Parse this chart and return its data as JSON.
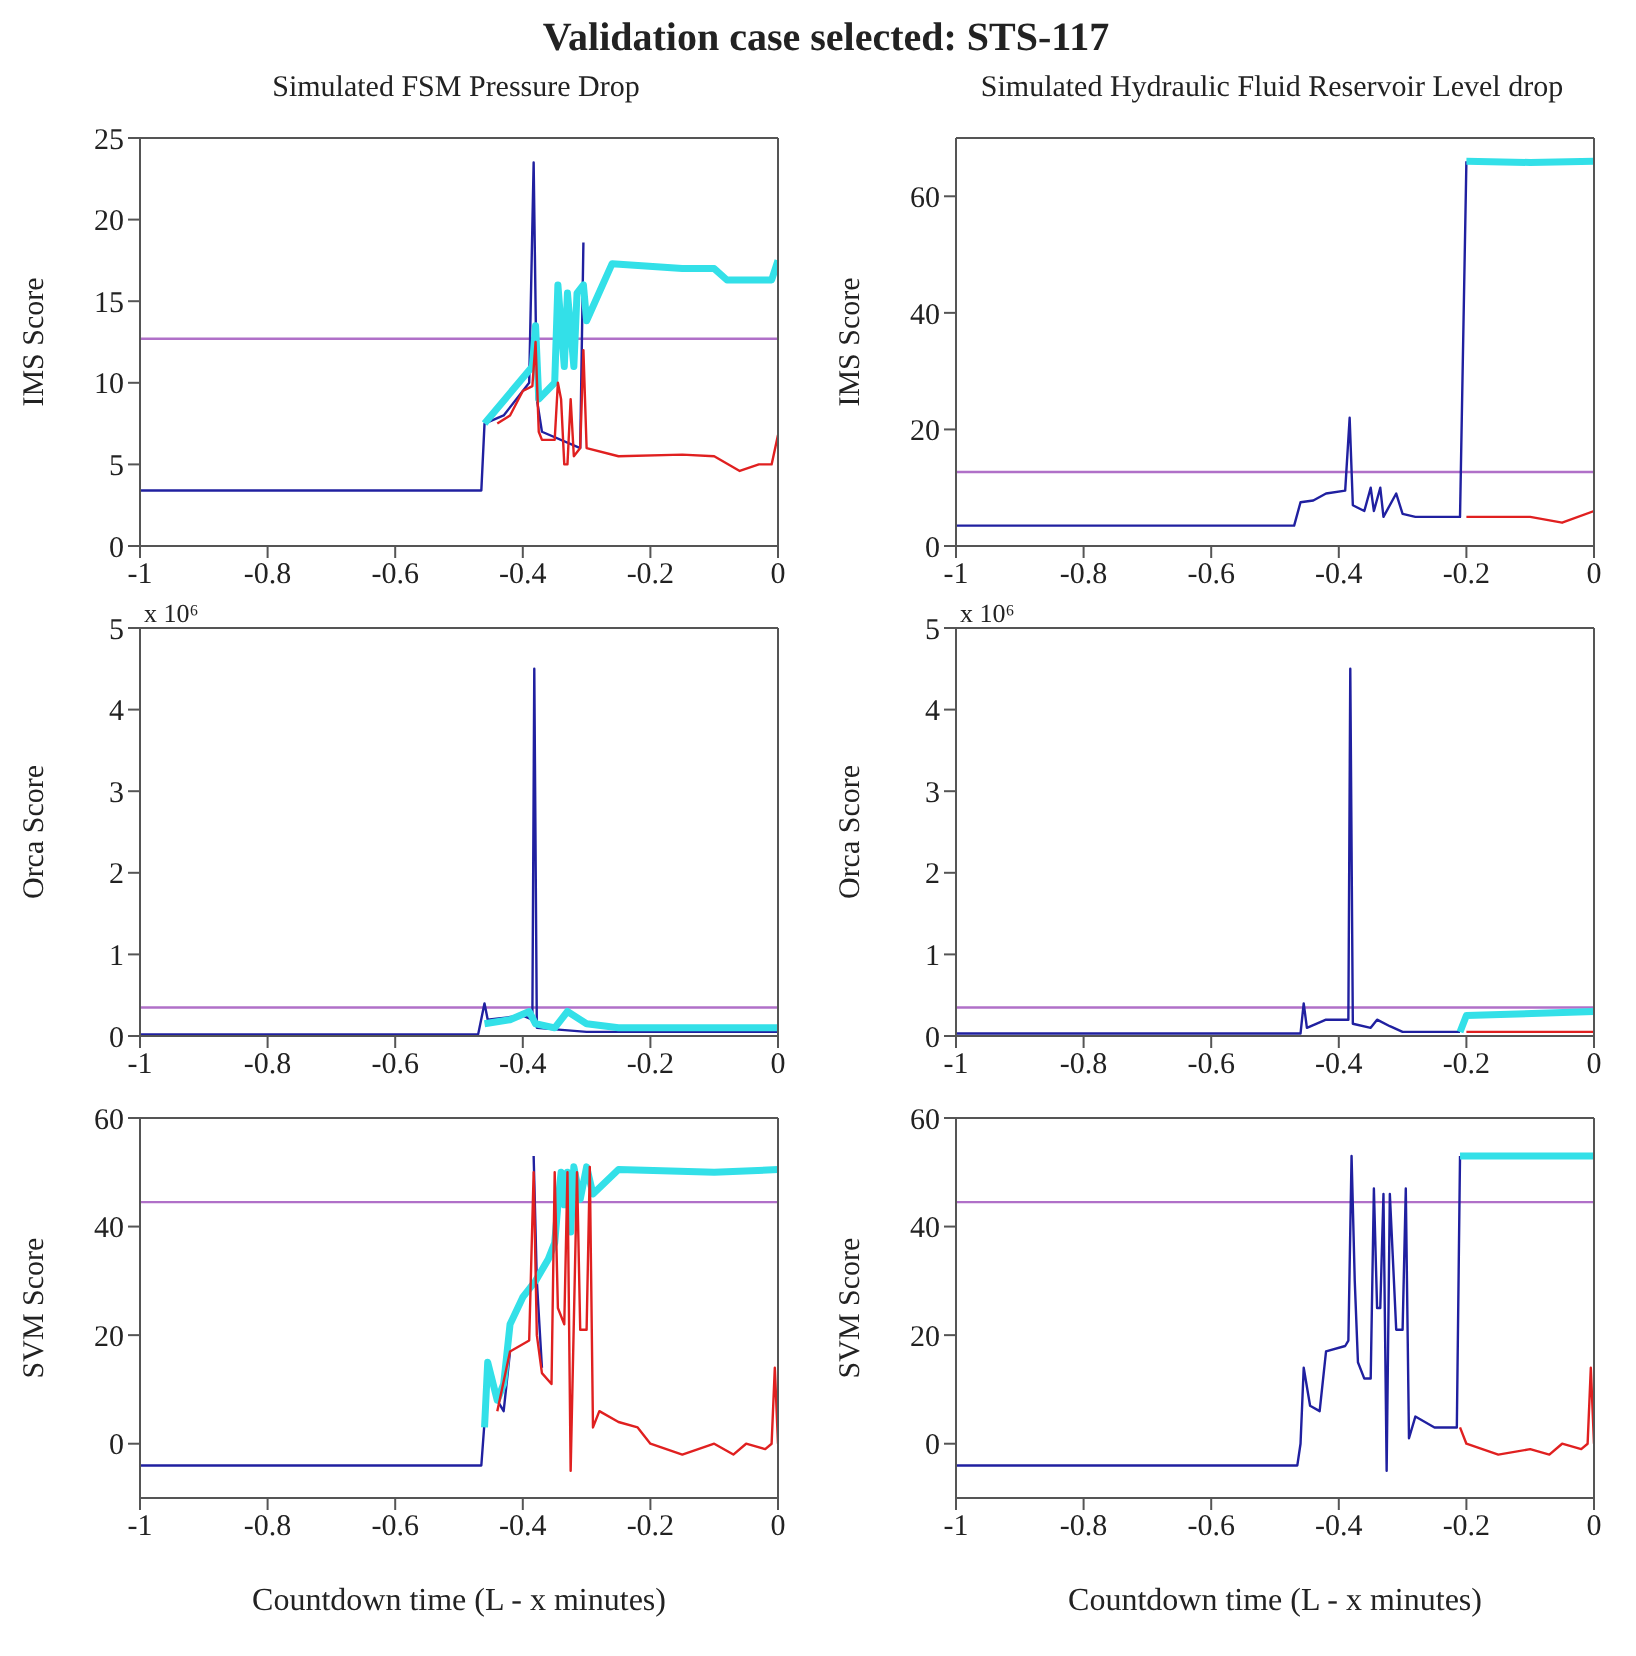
{
  "chart_data": [
    {
      "type": "line",
      "title": "Validation case selected: STS-117",
      "subtitle": "Simulated FSM Pressure Drop",
      "ylabel": "IMS Score",
      "xlim": [
        -1,
        0
      ],
      "xticks": [
        -1,
        -0.8,
        -0.6,
        -0.4,
        -0.2,
        0
      ],
      "ylim": [
        0,
        25
      ],
      "yticks": [
        0,
        5,
        10,
        15,
        20,
        25
      ],
      "ref_lines": [
        {
          "axis": "y",
          "value": 12.7,
          "color": "#b070c8"
        }
      ],
      "series": [
        {
          "color": "#2020a0",
          "x": [
            -1,
            -0.6,
            -0.465,
            -0.46,
            -0.43,
            -0.39,
            -0.383,
            -0.378,
            -0.37,
            -0.31,
            -0.305
          ],
          "values": [
            3.4,
            3.4,
            3.4,
            7.5,
            8,
            10,
            23.5,
            9,
            7,
            6,
            18.6
          ]
        },
        {
          "color": "#33e0e8",
          "x": [
            -0.46,
            -0.385,
            -0.38,
            -0.375,
            -0.35,
            -0.345,
            -0.335,
            -0.33,
            -0.32,
            -0.315,
            -0.305,
            -0.3,
            -0.26,
            -0.15,
            -0.1,
            -0.08,
            -0.01,
            0
          ],
          "values": [
            7.5,
            11,
            13.5,
            9,
            10,
            16,
            11,
            15.5,
            11,
            15.5,
            16,
            13.8,
            17.3,
            17,
            17,
            16.3,
            16.3,
            17.5
          ]
        },
        {
          "color": "#e02020",
          "x": [
            -0.44,
            -0.42,
            -0.4,
            -0.385,
            -0.38,
            -0.375,
            -0.37,
            -0.35,
            -0.345,
            -0.34,
            -0.335,
            -0.33,
            -0.325,
            -0.32,
            -0.31,
            -0.305,
            -0.3,
            -0.25,
            -0.15,
            -0.1,
            -0.06,
            -0.03,
            -0.01,
            0
          ],
          "values": [
            7.5,
            8,
            9.5,
            9.8,
            12.5,
            7,
            6.5,
            6.5,
            10,
            9,
            5,
            5,
            9,
            5.5,
            6,
            12,
            6,
            5.5,
            5.6,
            5.5,
            4.6,
            5,
            5,
            6.8
          ]
        }
      ]
    },
    {
      "type": "line",
      "subtitle": "Simulated Hydraulic Fluid Reservoir Level drop",
      "ylabel": "IMS Score",
      "xlim": [
        -1,
        0
      ],
      "xticks": [
        -1,
        -0.8,
        -0.6,
        -0.4,
        -0.2,
        0
      ],
      "ylim": [
        0,
        70
      ],
      "yticks": [
        0,
        20,
        40,
        60
      ],
      "ref_lines": [
        {
          "axis": "y",
          "value": 12.7,
          "color": "#b070c8"
        }
      ],
      "series": [
        {
          "color": "#2020a0",
          "x": [
            -1,
            -0.47,
            -0.46,
            -0.44,
            -0.42,
            -0.39,
            -0.383,
            -0.378,
            -0.36,
            -0.35,
            -0.345,
            -0.335,
            -0.33,
            -0.31,
            -0.3,
            -0.28,
            -0.21,
            -0.2
          ],
          "values": [
            3.5,
            3.5,
            7.5,
            7.8,
            9,
            9.5,
            22,
            7,
            6,
            10,
            6,
            10,
            5,
            9,
            5.5,
            5,
            5,
            66
          ]
        },
        {
          "color": "#33e0e8",
          "x": [
            -0.2,
            -0.1,
            0
          ],
          "values": [
            66,
            65.8,
            66
          ]
        },
        {
          "color": "#e02020",
          "x": [
            -0.2,
            -0.1,
            -0.05,
            0
          ],
          "values": [
            5,
            5,
            4,
            6
          ]
        }
      ]
    },
    {
      "type": "line",
      "ylabel": "Orca Score",
      "annotations": [
        "x 10⁶"
      ],
      "xlim": [
        -1,
        0
      ],
      "xticks": [
        -1,
        -0.8,
        -0.6,
        -0.4,
        -0.2,
        0
      ],
      "ylim": [
        0,
        5
      ],
      "yticks": [
        0,
        1,
        2,
        3,
        4,
        5
      ],
      "ref_lines": [
        {
          "axis": "y",
          "value": 0.35,
          "color": "#b070c8"
        }
      ],
      "series": [
        {
          "color": "#2020a0",
          "x": [
            -1,
            -0.47,
            -0.46,
            -0.455,
            -0.4,
            -0.385,
            -0.382,
            -0.378,
            -0.3,
            0
          ],
          "values": [
            0.02,
            0.02,
            0.4,
            0.2,
            0.25,
            0.2,
            4.5,
            0.1,
            0.05,
            0.05
          ]
        },
        {
          "color": "#33e0e8",
          "x": [
            -0.46,
            -0.42,
            -0.39,
            -0.38,
            -0.35,
            -0.33,
            -0.3,
            -0.25,
            0
          ],
          "values": [
            0.15,
            0.2,
            0.3,
            0.15,
            0.1,
            0.3,
            0.15,
            0.1,
            0.1
          ]
        }
      ]
    },
    {
      "type": "line",
      "ylabel": "Orca Score",
      "annotations": [
        "x 10⁶"
      ],
      "xlim": [
        -1,
        0
      ],
      "xticks": [
        -1,
        -0.8,
        -0.6,
        -0.4,
        -0.2,
        0
      ],
      "ylim": [
        0,
        5
      ],
      "yticks": [
        0,
        1,
        2,
        3,
        4,
        5
      ],
      "ref_lines": [
        {
          "axis": "y",
          "value": 0.35,
          "color": "#b070c8"
        }
      ],
      "series": [
        {
          "color": "#2020a0",
          "x": [
            -1,
            -0.46,
            -0.455,
            -0.45,
            -0.42,
            -0.385,
            -0.382,
            -0.378,
            -0.35,
            -0.34,
            -0.32,
            -0.3,
            -0.21
          ],
          "values": [
            0.03,
            0.03,
            0.4,
            0.1,
            0.2,
            0.2,
            4.5,
            0.15,
            0.1,
            0.2,
            0.12,
            0.05,
            0.05
          ]
        },
        {
          "color": "#33e0e8",
          "x": [
            -0.21,
            -0.2,
            0
          ],
          "values": [
            0.05,
            0.25,
            0.3
          ]
        },
        {
          "color": "#e02020",
          "x": [
            -0.2,
            0
          ],
          "values": [
            0.05,
            0.05
          ]
        }
      ]
    },
    {
      "type": "line",
      "ylabel": "SVM Score",
      "xlabel": "Countdown time (L - x minutes)",
      "xlim": [
        -1,
        0
      ],
      "xticks": [
        -1,
        -0.8,
        -0.6,
        -0.4,
        -0.2,
        0
      ],
      "ylim": [
        -10,
        60
      ],
      "yticks": [
        0,
        20,
        40,
        60
      ],
      "ref_lines": [
        {
          "axis": "y",
          "value": 44.5,
          "color": "#b070c8"
        }
      ],
      "series": [
        {
          "color": "#2020a0",
          "x": [
            -1,
            -0.465,
            -0.46,
            -0.455,
            -0.44,
            -0.43,
            -0.42,
            -0.39,
            -0.383,
            -0.378,
            -0.37
          ],
          "values": [
            -4,
            -4,
            4,
            null,
            8,
            6,
            17,
            null,
            53,
            30,
            14
          ]
        },
        {
          "color": "#33e0e8",
          "x": [
            -0.46,
            -0.455,
            -0.44,
            -0.43,
            -0.42,
            -0.4,
            -0.38,
            -0.36,
            -0.35,
            -0.345,
            -0.34,
            -0.335,
            -0.33,
            -0.325,
            -0.32,
            -0.31,
            -0.3,
            -0.29,
            -0.25,
            -0.1,
            0
          ],
          "values": [
            3,
            15,
            8,
            11,
            22,
            27,
            30,
            34,
            37,
            44,
            50,
            44,
            50,
            39,
            51,
            45,
            51,
            46,
            50.5,
            50,
            50.5
          ]
        },
        {
          "color": "#e02020",
          "x": [
            -0.44,
            -0.42,
            -0.39,
            -0.383,
            -0.378,
            -0.37,
            -0.355,
            -0.35,
            -0.345,
            -0.335,
            -0.33,
            -0.325,
            -0.315,
            -0.31,
            -0.3,
            -0.295,
            -0.29,
            -0.28,
            -0.25,
            -0.22,
            -0.2,
            -0.15,
            -0.1,
            -0.07,
            -0.05,
            -0.02,
            -0.01,
            -0.005,
            0
          ],
          "values": [
            6,
            17,
            19,
            50,
            20,
            13,
            11,
            50,
            25,
            22,
            50,
            -5,
            50,
            21,
            21,
            51,
            3,
            6,
            4,
            3,
            0,
            -2,
            0,
            -2,
            0,
            -1,
            0,
            14,
            0
          ]
        }
      ]
    },
    {
      "type": "line",
      "ylabel": "SVM Score",
      "xlabel": "Countdown time (L - x minutes)",
      "xlim": [
        -1,
        0
      ],
      "xticks": [
        -1,
        -0.8,
        -0.6,
        -0.4,
        -0.2,
        0
      ],
      "ylim": [
        -10,
        60
      ],
      "yticks": [
        0,
        20,
        40,
        60
      ],
      "ref_lines": [
        {
          "axis": "y",
          "value": 44.5,
          "color": "#b070c8"
        }
      ],
      "series": [
        {
          "color": "#2020a0",
          "x": [
            -1,
            -0.465,
            -0.46,
            -0.455,
            -0.445,
            -0.43,
            -0.42,
            -0.39,
            -0.385,
            -0.38,
            -0.375,
            -0.37,
            -0.36,
            -0.35,
            -0.345,
            -0.34,
            -0.335,
            -0.33,
            -0.325,
            -0.32,
            -0.31,
            -0.3,
            -0.295,
            -0.29,
            -0.28,
            -0.25,
            -0.215,
            -0.21
          ],
          "values": [
            -4,
            -4,
            0,
            14,
            7,
            6,
            17,
            18,
            19,
            53,
            30,
            15,
            12,
            12,
            47,
            25,
            25,
            46,
            -5,
            46,
            21,
            21,
            47,
            1,
            5,
            3,
            3,
            53
          ]
        },
        {
          "color": "#33e0e8",
          "x": [
            -0.21,
            0
          ],
          "values": [
            53,
            53
          ]
        },
        {
          "color": "#e02020",
          "x": [
            -0.21,
            -0.2,
            -0.15,
            -0.1,
            -0.07,
            -0.05,
            -0.02,
            -0.01,
            -0.005,
            0
          ],
          "values": [
            3,
            0,
            -2,
            -1,
            -2,
            0,
            -1,
            0,
            14,
            0
          ]
        }
      ]
    }
  ]
}
